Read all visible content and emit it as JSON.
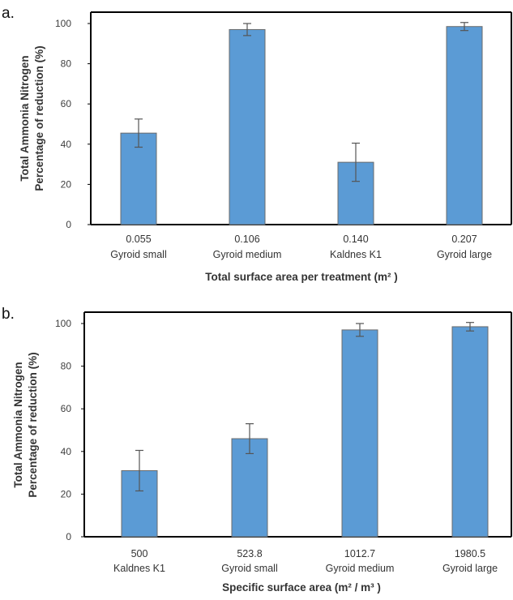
{
  "colors": {
    "bar_fill": "#5b9bd5",
    "bar_stroke": "#6b6b6b",
    "axis": "#000000",
    "error_bar": "#555555"
  },
  "chart_data": [
    {
      "type": "bar",
      "panel_label": "a.",
      "ylabel_lines": [
        "Total Ammonia Nitrogen",
        "Percentage of reduction (%)"
      ],
      "xlabel": "Total surface area per treatment (m² )",
      "ylim": [
        0,
        100
      ],
      "yticks": [
        0,
        20,
        40,
        60,
        80,
        100
      ],
      "categories": [
        {
          "top": "0.055",
          "bottom": "Gyroid small"
        },
        {
          "top": "0.106",
          "bottom": "Gyroid medium"
        },
        {
          "top": "0.140",
          "bottom": "Kaldnes K1"
        },
        {
          "top": "0.207",
          "bottom": "Gyroid large"
        }
      ],
      "values": [
        45.5,
        97,
        31,
        98.5
      ],
      "errors": [
        7,
        3,
        9.5,
        2
      ],
      "grid": false
    },
    {
      "type": "bar",
      "panel_label": "b.",
      "ylabel_lines": [
        "Total Ammonia Nitrogen",
        "Percentage of reduction (%)"
      ],
      "xlabel": "Specific surface area (m² / m³ )",
      "ylim": [
        0,
        100
      ],
      "yticks": [
        0,
        20,
        40,
        60,
        80,
        100
      ],
      "categories": [
        {
          "top": "500",
          "bottom": "Kaldnes K1"
        },
        {
          "top": "523.8",
          "bottom": "Gyroid small"
        },
        {
          "top": "1012.7",
          "bottom": "Gyroid medium"
        },
        {
          "top": "1980.5",
          "bottom": "Gyroid large"
        }
      ],
      "values": [
        31,
        46,
        97,
        98.5
      ],
      "errors": [
        9.5,
        7,
        3,
        2
      ],
      "grid": false
    }
  ]
}
